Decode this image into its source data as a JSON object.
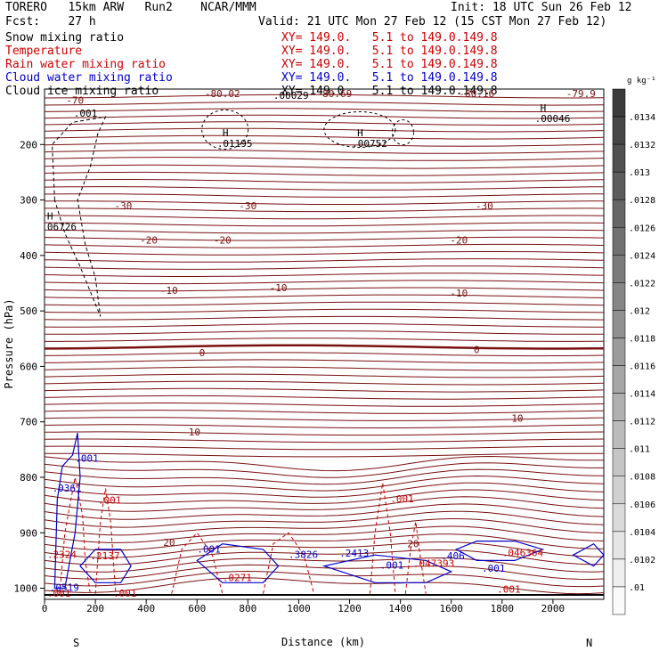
{
  "header": {
    "model": "TORERO   15km ARW   Run2    NCAR/MMM",
    "init": "Init: 18 UTC Sun 26 Feb 12",
    "fcst": "Fcst:    27 h",
    "valid": "Valid: 21 UTC Mon 27 Feb 12 (15 CST Mon 27 Feb 12)"
  },
  "fields": [
    {
      "name": "Snow mixing ratio",
      "xy": "",
      "color": "#000000"
    },
    {
      "name": "Temperature",
      "xy": "XY= 149.0.   5.1 to 149.0.149.8",
      "color": "#cc0000"
    },
    {
      "name": "Rain water mixing ratio",
      "xy": "XY= 149.0.   5.1 to 149.0.149.8",
      "color": "#cc0000"
    },
    {
      "name": "Cloud water mixing ratio",
      "xy": "XY= 149.0.   5.1 to 149.0.149.8",
      "color": "#0000cc"
    },
    {
      "name": "Cloud ice mixing ratio",
      "xy": "XY= 149.0.   5.1 to 149.0.149.8",
      "color": "#000000"
    }
  ],
  "xy_line1": "XY= 149.0.   5.1 to 149.0.149.8",
  "chart_data": {
    "type": "contour",
    "xlabel": "Distance (km)",
    "ylabel": "Pressure (hPa)",
    "xlim": [
      0,
      2200
    ],
    "ylim": [
      1020,
      100
    ],
    "x_ticks": [
      0,
      200,
      400,
      600,
      800,
      1000,
      1200,
      1400,
      1600,
      1800,
      2000
    ],
    "y_ticks": [
      200,
      300,
      400,
      500,
      600,
      700,
      800,
      900,
      1000
    ],
    "x_end_labels": [
      "S",
      "N"
    ],
    "temperature_labels": [
      {
        "value": "-70",
        "x": 120,
        "p": 120
      },
      {
        "value": "-80.02",
        "x": 700,
        "p": 108
      },
      {
        "value": "-80.69",
        "x": 1140,
        "p": 108
      },
      {
        "value": "-80.16",
        "x": 1700,
        "p": 108
      },
      {
        "value": "-79.9",
        "x": 2110,
        "p": 108
      },
      {
        "value": "-30",
        "x": 310,
        "p": 310
      },
      {
        "value": "-30",
        "x": 800,
        "p": 310
      },
      {
        "value": "-30",
        "x": 1730,
        "p": 310
      },
      {
        "value": "-20",
        "x": 410,
        "p": 372
      },
      {
        "value": "-20",
        "x": 700,
        "p": 372
      },
      {
        "value": "-20",
        "x": 1630,
        "p": 372
      },
      {
        "value": "-10",
        "x": 490,
        "p": 463
      },
      {
        "value": "-10",
        "x": 920,
        "p": 458
      },
      {
        "value": "-10",
        "x": 1630,
        "p": 468
      },
      {
        "value": "0",
        "x": 620,
        "p": 575
      },
      {
        "value": "0",
        "x": 1700,
        "p": 570
      },
      {
        "value": "10",
        "x": 590,
        "p": 718
      },
      {
        "value": "10",
        "x": 1860,
        "p": 693
      },
      {
        "value": "20",
        "x": 490,
        "p": 917
      },
      {
        "value": "20",
        "x": 1450,
        "p": 920
      }
    ],
    "snow_labels": [
      {
        "value": "H",
        "x": 700,
        "p": 185,
        "label": ".01195"
      },
      {
        "value": "H",
        "x": 1230,
        "p": 185,
        "label": ".00752"
      },
      {
        "value": "H",
        "x": 1950,
        "p": 140,
        "label": ".00046"
      }
    ],
    "ice_labels": [
      {
        "value": ".001",
        "x": 115,
        "p": 150
      },
      {
        "value": ".00029",
        "x": 900,
        "p": 118
      },
      {
        "value": "H",
        "x": 10,
        "p": 335,
        "label": "06726"
      }
    ],
    "cloud_water_labels": [
      {
        "value": ".001",
        "x": 120,
        "p": 772
      },
      {
        "value": ".0361",
        "x": 30,
        "p": 826
      },
      {
        "value": ".001",
        "x": 600,
        "p": 936
      },
      {
        "value": ".3826",
        "x": 960,
        "p": 945
      },
      {
        "value": ".2413",
        "x": 1160,
        "p": 943
      },
      {
        "value": ".001",
        "x": 1320,
        "p": 965
      },
      {
        "value": ".406",
        "x": 1560,
        "p": 948
      },
      {
        "value": ".001",
        "x": 1720,
        "p": 970
      },
      {
        "value": ".0519",
        "x": 20,
        "p": 1005
      }
    ],
    "rain_labels": [
      {
        "value": ".001",
        "x": 210,
        "p": 847
      },
      {
        "value": ".001",
        "x": 1360,
        "p": 845
      },
      {
        "value": ".2324",
        "x": 10,
        "p": 945
      },
      {
        "value": ".2137",
        "x": 180,
        "p": 948
      },
      {
        "value": ".0271",
        "x": 700,
        "p": 987
      },
      {
        "value": ".047393",
        "x": 1450,
        "p": 961
      },
      {
        "value": ".046364",
        "x": 1800,
        "p": 942
      },
      {
        "value": ".001",
        "x": 10,
        "p": 1015
      },
      {
        "value": ".001",
        "x": 270,
        "p": 1015
      },
      {
        "value": ".001",
        "x": 1780,
        "p": 1008
      }
    ],
    "colorbar": {
      "unit": "g kg⁻¹",
      "ticks": [
        ".0134",
        ".0132",
        ".013",
        ".0128",
        ".0126",
        ".0124",
        ".0122",
        ".012",
        ".0118",
        ".0116",
        ".0114",
        ".0112",
        ".011",
        ".0108",
        ".0106",
        ".0104",
        ".0102",
        ".01"
      ]
    }
  }
}
